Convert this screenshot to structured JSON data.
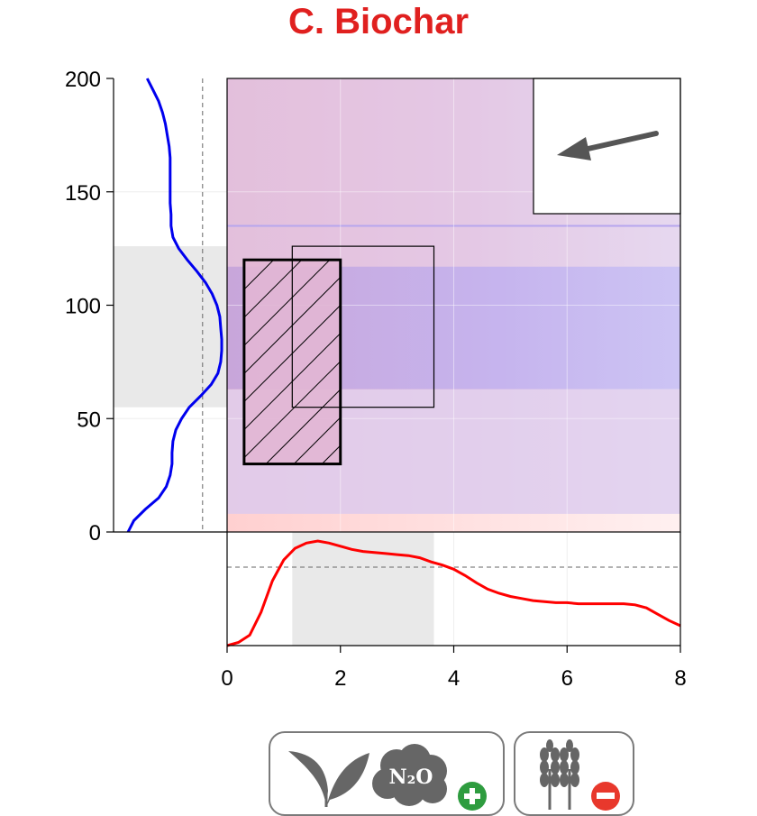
{
  "title": "C. Biochar",
  "colors": {
    "title": "#e0201f",
    "x_density": "#ff0000",
    "y_density": "#0000ee",
    "band_gray": "#e9e9e9",
    "band_blue": "#c4b8f0",
    "band_pink": "#e6b8d6",
    "band_lavender": "#e4d6f0",
    "band_red": "#ffd6d6",
    "hatch": "#000000",
    "arrow": "#555555",
    "plus_badge": "#2e9c3f",
    "minus_badge": "#e8382c",
    "icon_gray": "#666666"
  },
  "chart_data": {
    "type": "scatter",
    "title": "C. Biochar",
    "xlabel": "",
    "ylabel": "",
    "xlim": [
      0,
      8
    ],
    "ylim": [
      0,
      200
    ],
    "x_ticks": [
      "0",
      "2",
      "4",
      "6",
      "8"
    ],
    "y_ticks": [
      "0",
      "50",
      "100",
      "150",
      "200"
    ],
    "x_tick_values": [
      0,
      2,
      4,
      6,
      8
    ],
    "y_tick_values": [
      0,
      50,
      100,
      150,
      200
    ],
    "grid": true,
    "x_interval": [
      1.15,
      3.65
    ],
    "y_interval": [
      55,
      126
    ],
    "x_reference_line": 1.0,
    "y_reference_line": 0.8,
    "hatched_rectangle": {
      "x": [
        0.3,
        2.0
      ],
      "y": [
        30,
        120
      ]
    },
    "outline_rectangle": {
      "x": [
        1.15,
        3.65
      ],
      "y": [
        55,
        126
      ]
    },
    "blue_band": {
      "y": [
        63,
        117
      ]
    },
    "thin_line": {
      "y": 135
    },
    "red_band": {
      "y": [
        0,
        8
      ]
    },
    "x_density": {
      "x": [
        0,
        0.2,
        0.4,
        0.6,
        0.8,
        1.0,
        1.2,
        1.4,
        1.6,
        1.8,
        2.0,
        2.2,
        2.4,
        2.6,
        2.8,
        3.0,
        3.2,
        3.4,
        3.6,
        3.8,
        4.0,
        4.2,
        4.4,
        4.6,
        4.8,
        5.0,
        5.2,
        5.4,
        5.6,
        5.8,
        6.0,
        6.2,
        6.4,
        6.6,
        6.8,
        7.0,
        7.2,
        7.4,
        7.6,
        7.8,
        8.0
      ],
      "y": [
        0.0,
        0.03,
        0.1,
        0.32,
        0.62,
        0.82,
        0.93,
        0.98,
        1.0,
        0.98,
        0.95,
        0.92,
        0.9,
        0.89,
        0.88,
        0.87,
        0.86,
        0.84,
        0.8,
        0.77,
        0.73,
        0.67,
        0.6,
        0.54,
        0.5,
        0.47,
        0.45,
        0.43,
        0.42,
        0.41,
        0.41,
        0.4,
        0.4,
        0.4,
        0.4,
        0.4,
        0.39,
        0.36,
        0.3,
        0.24,
        0.19
      ]
    },
    "y_density": {
      "y": [
        0,
        5,
        10,
        15,
        20,
        25,
        30,
        35,
        40,
        45,
        50,
        55,
        60,
        65,
        70,
        75,
        80,
        85,
        90,
        95,
        100,
        105,
        110,
        115,
        120,
        125,
        130,
        135,
        140,
        145,
        150,
        155,
        160,
        165,
        170,
        175,
        180,
        185,
        190,
        195,
        200
      ],
      "x": [
        0.02,
        0.08,
        0.2,
        0.34,
        0.42,
        0.46,
        0.48,
        0.48,
        0.49,
        0.52,
        0.58,
        0.66,
        0.78,
        0.89,
        0.96,
        0.99,
        1.0,
        1.0,
        0.99,
        0.98,
        0.95,
        0.9,
        0.83,
        0.74,
        0.64,
        0.55,
        0.49,
        0.47,
        0.47,
        0.46,
        0.46,
        0.46,
        0.46,
        0.46,
        0.45,
        0.43,
        0.41,
        0.38,
        0.34,
        0.28,
        0.22
      ]
    }
  },
  "badges": {
    "left": {
      "icon_1": "leaves-icon",
      "icon_2": "cloud-icon",
      "cloud_label": "N₂O",
      "sign": "+",
      "sign_icon": "plus-circle-icon"
    },
    "right": {
      "icon_1": "wheat-icon",
      "sign": "−",
      "sign_icon": "minus-circle-icon"
    }
  },
  "inset": {
    "icon": "arrow-left-icon"
  }
}
